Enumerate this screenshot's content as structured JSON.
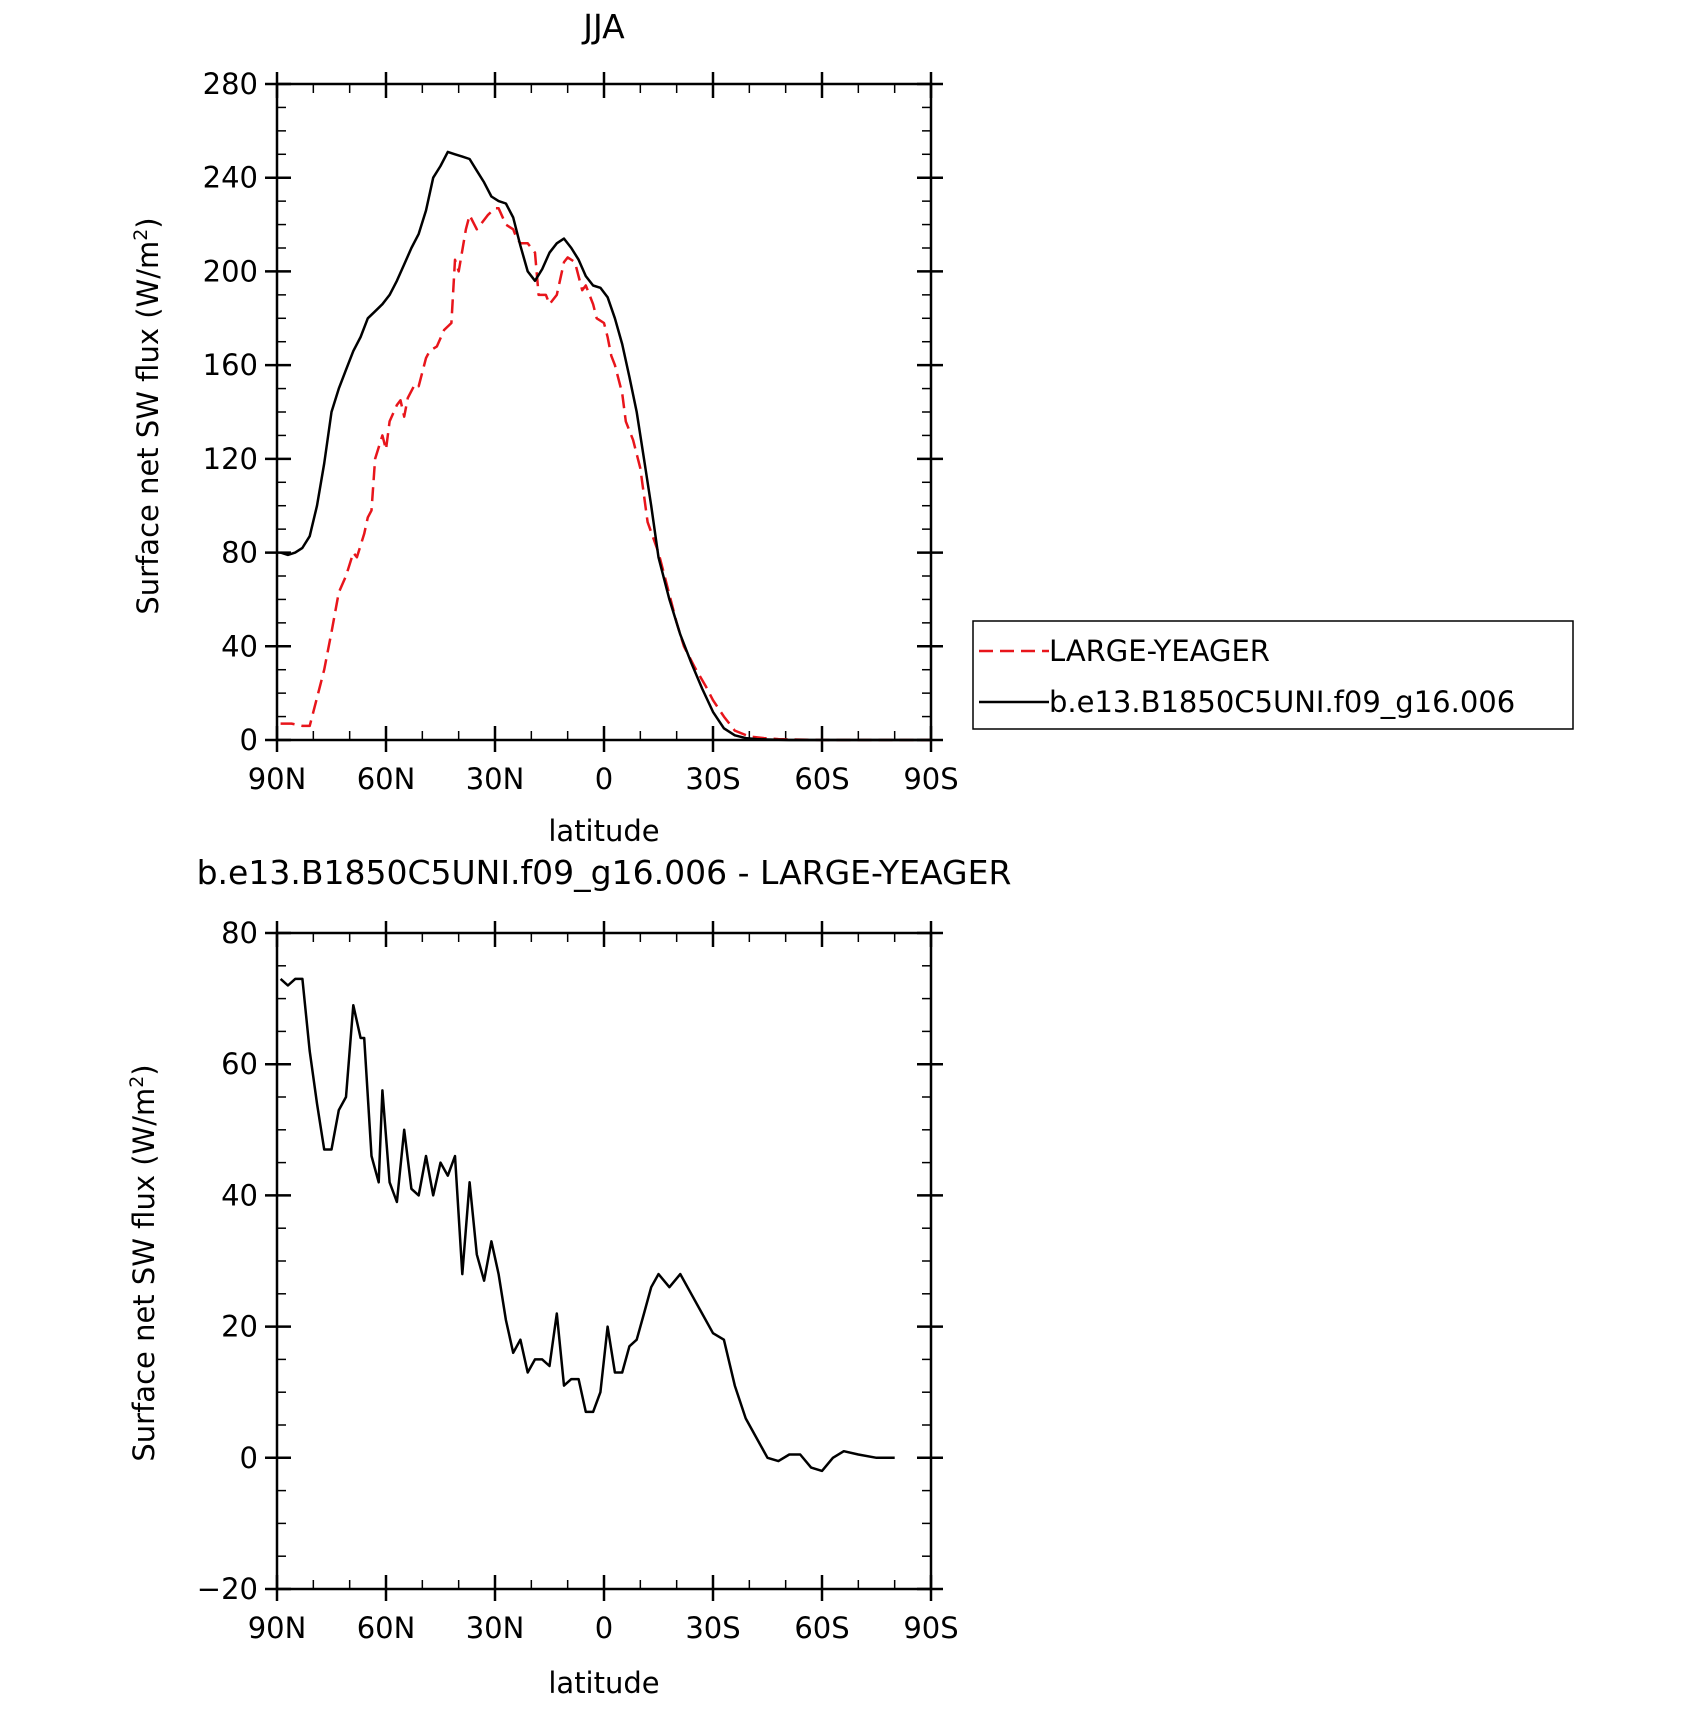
{
  "chart_data": [
    {
      "type": "line",
      "title": "JJA",
      "xlabel": "latitude",
      "ylabel": "Surface net SW flux (W/m",
      "ylabel_superscript": "2",
      "ylabel_close": ")",
      "xlim": [
        90,
        -90
      ],
      "ylim": [
        0,
        280
      ],
      "xticks": [
        {
          "value": 90,
          "label": "90N"
        },
        {
          "value": 60,
          "label": "60N"
        },
        {
          "value": 30,
          "label": "30N"
        },
        {
          "value": 0,
          "label": "0"
        },
        {
          "value": -30,
          "label": "30S"
        },
        {
          "value": -60,
          "label": "60S"
        },
        {
          "value": -90,
          "label": "90S"
        }
      ],
      "yticks": [
        {
          "value": 0,
          "label": "0"
        },
        {
          "value": 40,
          "label": "40"
        },
        {
          "value": 80,
          "label": "80"
        },
        {
          "value": 120,
          "label": "120"
        },
        {
          "value": 160,
          "label": "160"
        },
        {
          "value": 200,
          "label": "200"
        },
        {
          "value": 240,
          "label": "240"
        },
        {
          "value": 280,
          "label": "280"
        }
      ],
      "legend_position": "right",
      "series": [
        {
          "name": "LARGE-YEAGER",
          "color": "#e8151b",
          "dashed": true,
          "x": [
            89,
            86,
            83,
            81,
            79,
            77,
            75,
            73,
            71,
            69,
            68,
            66,
            65,
            64,
            63,
            61,
            60,
            59,
            57,
            56,
            55,
            54,
            52,
            51,
            49,
            48,
            46,
            44,
            42,
            41,
            40,
            38,
            37,
            35,
            34,
            32,
            30,
            29,
            27,
            25,
            24,
            23,
            21,
            19,
            18,
            16,
            15,
            13,
            11,
            10,
            8,
            6,
            5,
            3,
            2,
            0,
            -1,
            -2,
            -3,
            -5,
            -6,
            -8,
            -10,
            -12,
            -15,
            -18,
            -20,
            -22,
            -25,
            -28,
            -30,
            -33,
            -36,
            -40,
            -44,
            -48,
            -52,
            -56,
            -60,
            -62,
            -64,
            -67,
            -70,
            -75,
            -80,
            -85,
            -90
          ],
          "y": [
            7,
            7,
            6,
            6,
            18,
            30,
            46,
            63,
            70,
            80,
            78,
            88,
            95,
            98,
            120,
            130,
            124,
            136,
            143,
            145,
            138,
            146,
            152,
            151,
            163,
            166,
            168,
            175,
            178,
            205,
            200,
            218,
            224,
            218,
            220,
            224,
            227,
            227,
            220,
            218,
            214,
            212,
            212,
            208,
            190,
            190,
            186,
            190,
            204,
            206,
            204,
            192,
            194,
            186,
            180,
            178,
            172,
            164,
            160,
            148,
            136,
            128,
            116,
            93,
            80,
            62,
            50,
            40,
            31,
            23,
            17,
            10,
            4,
            1.5,
            0.8,
            0.4,
            0.2,
            0.1,
            0,
            0,
            0,
            0,
            0,
            0,
            0,
            0,
            0
          ]
        },
        {
          "name": "b.e13.B1850C5UNI.f09_g16.006",
          "color": "#000000",
          "dashed": false,
          "x": [
            89,
            87,
            85,
            83,
            81,
            79,
            77,
            75,
            73,
            71,
            69,
            67,
            65,
            63,
            61,
            59,
            57,
            55,
            53,
            51,
            49,
            47,
            45,
            43,
            41,
            39,
            37,
            35,
            33,
            31,
            29,
            27,
            25,
            23,
            21,
            19,
            17,
            15,
            13,
            11,
            9,
            7,
            5,
            3,
            1,
            -1,
            -3,
            -5,
            -7,
            -9,
            -11,
            -13,
            -15,
            -18,
            -21,
            -24,
            -27,
            -30,
            -33,
            -36,
            -39,
            -42,
            -45,
            -48,
            -51,
            -54,
            -57,
            -60,
            -63,
            -66,
            -70,
            -75,
            -80,
            -85,
            -90
          ],
          "y": [
            80,
            79,
            80,
            82,
            87,
            100,
            118,
            140,
            150,
            158,
            166,
            172,
            180,
            183,
            186,
            190,
            196,
            203,
            210,
            216,
            226,
            240,
            245,
            251,
            250,
            249,
            248,
            243,
            238,
            232,
            230,
            229,
            223,
            211,
            200,
            196,
            201,
            208,
            212,
            214,
            210,
            205,
            198,
            194,
            193,
            189,
            180,
            169,
            155,
            140,
            120,
            100,
            78,
            60,
            45,
            33,
            22,
            12,
            5,
            2,
            0.8,
            0.4,
            0.2,
            0.1,
            0,
            0,
            0,
            0,
            0,
            0,
            0,
            0,
            0,
            0,
            0
          ]
        }
      ]
    },
    {
      "type": "line",
      "title": "b.e13.B1850C5UNI.f09_g16.006 - LARGE-YEAGER",
      "xlabel": "latitude",
      "ylabel": "Surface net SW flux (W/m",
      "ylabel_superscript": "2",
      "ylabel_close": ")",
      "xlim": [
        90,
        -90
      ],
      "ylim": [
        -20,
        80
      ],
      "xticks": [
        {
          "value": 90,
          "label": "90N"
        },
        {
          "value": 60,
          "label": "60N"
        },
        {
          "value": 30,
          "label": "30N"
        },
        {
          "value": 0,
          "label": "0"
        },
        {
          "value": -30,
          "label": "30S"
        },
        {
          "value": -60,
          "label": "60S"
        },
        {
          "value": -90,
          "label": "90S"
        }
      ],
      "yticks": [
        {
          "value": -20,
          "label": "−20"
        },
        {
          "value": 0,
          "label": "0"
        },
        {
          "value": 20,
          "label": "20"
        },
        {
          "value": 40,
          "label": "40"
        },
        {
          "value": 60,
          "label": "60"
        },
        {
          "value": 80,
          "label": "80"
        }
      ],
      "series": [
        {
          "color": "#000000",
          "dashed": false,
          "x": [
            89,
            87,
            85,
            83,
            81,
            79,
            77,
            75,
            73,
            71,
            69,
            67,
            66,
            64,
            62,
            61,
            59,
            57,
            55,
            53,
            51,
            49,
            47,
            45,
            43,
            41,
            39,
            37,
            35,
            33,
            31,
            29,
            27,
            25,
            23,
            21,
            19,
            17,
            15,
            13,
            11,
            9,
            7,
            5,
            3,
            1,
            -1,
            -3,
            -5,
            -7,
            -9,
            -11,
            -13,
            -15,
            -18,
            -21,
            -24,
            -27,
            -30,
            -33,
            -36,
            -39,
            -42,
            -45,
            -48,
            -51,
            -54,
            -57,
            -60,
            -63,
            -66,
            -70,
            -75,
            -80
          ],
          "y": [
            73,
            72,
            73,
            73,
            62,
            54,
            47,
            47,
            53,
            55,
            69,
            64,
            64,
            46,
            42,
            56,
            42,
            39,
            50,
            41,
            40,
            46,
            40,
            45,
            43,
            46,
            28,
            42,
            31,
            27,
            33,
            28,
            21,
            16,
            18,
            13,
            15,
            15,
            14,
            22,
            11,
            12,
            12,
            7,
            7,
            10,
            20,
            13,
            13,
            17,
            18,
            22,
            26,
            28,
            26,
            28,
            25,
            22,
            19,
            18,
            11,
            6,
            3,
            0,
            -0.5,
            0.5,
            0.5,
            -1.5,
            -2,
            0,
            1,
            0.5,
            0,
            0
          ]
        }
      ]
    }
  ]
}
